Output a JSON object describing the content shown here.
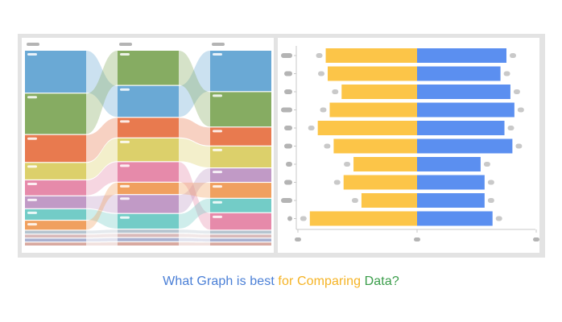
{
  "caption": {
    "part1": "What Graph is best ",
    "part2": "for Comparing ",
    "part3": "Data?",
    "colors": {
      "part1": "#4a7fd6",
      "part2": "#f5b324",
      "part3": "#3a9d4a"
    }
  },
  "colors": {
    "frame": "#e3e3e3",
    "placeholder": "#b4b4b4",
    "bar_left": "#fcc548",
    "bar_right": "#5b8ff0"
  },
  "chart_data": [
    {
      "type": "alluvial",
      "columns": 3,
      "categories": [
        "c1",
        "c2",
        "c3",
        "c4",
        "c5",
        "c6",
        "c7",
        "c8",
        "c9",
        "c10",
        "c11",
        "c12"
      ],
      "colors": [
        "#6aa9d5",
        "#86ac62",
        "#e87a4f",
        "#dcd06b",
        "#e68aaa",
        "#c19ac6",
        "#73ccc7",
        "#f0a05f",
        "#b5c4cf",
        "#d8b9b9",
        "#a8b0d0",
        "#d8a9a0"
      ],
      "stages": [
        [
          28,
          27,
          18,
          11,
          10,
          8,
          7,
          6,
          2,
          2,
          2,
          2
        ],
        [
          19,
          21,
          12,
          14,
          12,
          11,
          9,
          7,
          2,
          2,
          2,
          2
        ],
        [
          27,
          23,
          12,
          14,
          11,
          9,
          9,
          10,
          2,
          2,
          2,
          2
        ]
      ],
      "stage_order": [
        [
          0,
          1,
          2,
          3,
          4,
          5,
          6,
          7,
          8,
          9,
          10,
          11
        ],
        [
          1,
          0,
          2,
          3,
          4,
          7,
          5,
          6,
          8,
          9,
          10,
          11
        ],
        [
          0,
          1,
          2,
          3,
          5,
          7,
          6,
          4,
          8,
          9,
          10,
          11
        ]
      ]
    },
    {
      "type": "bar",
      "orientation": "horizontal-diverging",
      "series": [
        {
          "values": [
            -46,
            -45,
            -38,
            -44,
            -50,
            -42,
            -32,
            -37,
            -28,
            -54
          ]
        },
        {
          "values": [
            45,
            42,
            47,
            49,
            44,
            48,
            32,
            34,
            34,
            38
          ]
        }
      ],
      "xlim": [
        -60,
        60
      ]
    }
  ]
}
